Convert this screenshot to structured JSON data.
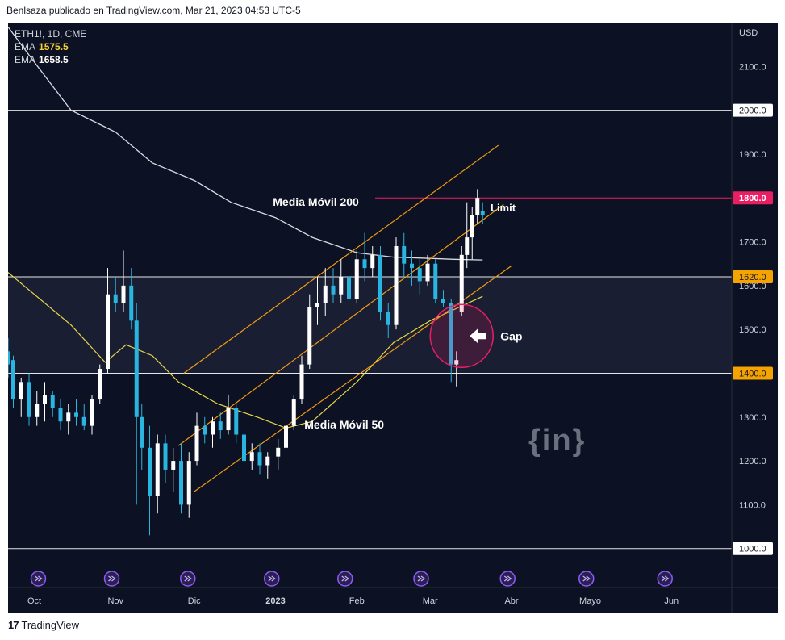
{
  "header": {
    "publisher_text": "Benlsaza publicado en TradingView.com, Mar 21, 2023 04:53 UTC-5"
  },
  "footer": {
    "brand": "TradingView"
  },
  "legend": {
    "symbol": "ETH1!, 1D, CME",
    "ema1_label": "EMA",
    "ema1_value": "1575.5",
    "ema2_label": "EMA",
    "ema2_value": "1658.5"
  },
  "watermark": {
    "text": "{in}"
  },
  "colors": {
    "background": "#0c1123",
    "up": "#ffffff",
    "down": "#2ab4e0",
    "ema50": "#e8d84a",
    "ema200": "#d9dbe0",
    "channel": "#f39c12",
    "limit": "#e91e63",
    "accent_badge": "#f5a300"
  },
  "chart_data": {
    "type": "candlestick",
    "title": "",
    "ylabel": "USD",
    "ylim": [
      970,
      2200
    ],
    "yticks": [
      "1000.0",
      "1100.0",
      "1200.0",
      "1300.0",
      "1400.0",
      "1500.0",
      "1600.0",
      "1700.0",
      "1800.0",
      "1900.0",
      "2000.0",
      "2100.0"
    ],
    "xticks": [
      {
        "date": "2022-10-01",
        "label": "Oct"
      },
      {
        "date": "2022-11-01",
        "label": "Nov"
      },
      {
        "date": "2022-12-01",
        "label": "Dic"
      },
      {
        "date": "2023-01-01",
        "label": "2023"
      },
      {
        "date": "2023-02-01",
        "label": "Feb"
      },
      {
        "date": "2023-03-01",
        "label": "Mar"
      },
      {
        "date": "2023-04-01",
        "label": "Abr"
      },
      {
        "date": "2023-05-01",
        "label": "Mayo"
      },
      {
        "date": "2023-06-01",
        "label": "Jun"
      }
    ],
    "xlim": [
      "2022-09-21",
      "2023-06-24"
    ],
    "horizontal_lines": [
      {
        "value": 2000,
        "label": "2000.0",
        "style": "white"
      },
      {
        "value": 1620,
        "label": "1620.0",
        "style": "yellow"
      },
      {
        "value": 1400,
        "label": "1400.0",
        "style": "yellow"
      },
      {
        "value": 1000,
        "label": "1000.0",
        "style": "white"
      }
    ],
    "limit_line": {
      "value": 1800,
      "label": "1800.0",
      "start": "2023-02-08",
      "end": "2023-06-24",
      "text": "Limit"
    },
    "annotations": {
      "ema200": "Media Móvil 200",
      "ema50": "Media Móvil 50",
      "gap": "Gap"
    },
    "channel_lines": [
      {
        "x1": "2022-11-27",
        "y1": 1400,
        "x2": "2023-03-27",
        "y2": 1920
      },
      {
        "x1": "2022-11-25",
        "y1": 1235,
        "x2": "2023-03-29",
        "y2": 1785
      },
      {
        "x1": "2022-12-01",
        "y1": 1130,
        "x2": "2023-04-01",
        "y2": 1645
      }
    ],
    "gap_circle": {
      "x": "2023-03-13",
      "y": 1485
    },
    "ema200": [
      {
        "d": "2022-09-21",
        "v": 2190
      },
      {
        "d": "2022-10-01",
        "v": 2110
      },
      {
        "d": "2022-10-15",
        "v": 2000
      },
      {
        "d": "2022-11-01",
        "v": 1950
      },
      {
        "d": "2022-11-15",
        "v": 1880
      },
      {
        "d": "2022-12-01",
        "v": 1840
      },
      {
        "d": "2022-12-15",
        "v": 1790
      },
      {
        "d": "2023-01-01",
        "v": 1755
      },
      {
        "d": "2023-01-15",
        "v": 1710
      },
      {
        "d": "2023-02-01",
        "v": 1675
      },
      {
        "d": "2023-02-15",
        "v": 1665
      },
      {
        "d": "2023-03-01",
        "v": 1662
      },
      {
        "d": "2023-03-10",
        "v": 1660
      },
      {
        "d": "2023-03-21",
        "v": 1658.5
      }
    ],
    "ema50": [
      {
        "d": "2022-09-21",
        "v": 1630
      },
      {
        "d": "2022-10-01",
        "v": 1580
      },
      {
        "d": "2022-10-15",
        "v": 1510
      },
      {
        "d": "2022-10-28",
        "v": 1425
      },
      {
        "d": "2022-11-05",
        "v": 1465
      },
      {
        "d": "2022-11-15",
        "v": 1440
      },
      {
        "d": "2022-11-25",
        "v": 1380
      },
      {
        "d": "2022-12-10",
        "v": 1330
      },
      {
        "d": "2022-12-25",
        "v": 1300
      },
      {
        "d": "2023-01-05",
        "v": 1275
      },
      {
        "d": "2023-01-15",
        "v": 1290
      },
      {
        "d": "2023-02-01",
        "v": 1380
      },
      {
        "d": "2023-02-15",
        "v": 1470
      },
      {
        "d": "2023-03-01",
        "v": 1520
      },
      {
        "d": "2023-03-10",
        "v": 1545
      },
      {
        "d": "2023-03-21",
        "v": 1575.5
      }
    ],
    "candles": [
      {
        "d": "2022-09-21",
        "o": 1450,
        "h": 1480,
        "l": 1390,
        "c": 1420
      },
      {
        "d": "2022-09-23",
        "o": 1430,
        "h": 1440,
        "l": 1320,
        "c": 1340
      },
      {
        "d": "2022-09-26",
        "o": 1340,
        "h": 1390,
        "l": 1300,
        "c": 1380
      },
      {
        "d": "2022-09-29",
        "o": 1380,
        "h": 1400,
        "l": 1280,
        "c": 1300
      },
      {
        "d": "2022-10-02",
        "o": 1300,
        "h": 1360,
        "l": 1280,
        "c": 1330
      },
      {
        "d": "2022-10-05",
        "o": 1330,
        "h": 1380,
        "l": 1290,
        "c": 1350
      },
      {
        "d": "2022-10-08",
        "o": 1350,
        "h": 1360,
        "l": 1300,
        "c": 1320
      },
      {
        "d": "2022-10-11",
        "o": 1320,
        "h": 1340,
        "l": 1270,
        "c": 1290
      },
      {
        "d": "2022-10-14",
        "o": 1290,
        "h": 1330,
        "l": 1260,
        "c": 1310
      },
      {
        "d": "2022-10-17",
        "o": 1310,
        "h": 1340,
        "l": 1280,
        "c": 1300
      },
      {
        "d": "2022-10-20",
        "o": 1300,
        "h": 1330,
        "l": 1270,
        "c": 1280
      },
      {
        "d": "2022-10-23",
        "o": 1280,
        "h": 1350,
        "l": 1260,
        "c": 1340
      },
      {
        "d": "2022-10-26",
        "o": 1340,
        "h": 1420,
        "l": 1330,
        "c": 1410
      },
      {
        "d": "2022-10-29",
        "o": 1410,
        "h": 1640,
        "l": 1400,
        "c": 1580
      },
      {
        "d": "2022-11-01",
        "o": 1580,
        "h": 1620,
        "l": 1540,
        "c": 1560
      },
      {
        "d": "2022-11-04",
        "o": 1560,
        "h": 1680,
        "l": 1540,
        "c": 1600
      },
      {
        "d": "2022-11-07",
        "o": 1600,
        "h": 1640,
        "l": 1500,
        "c": 1520
      },
      {
        "d": "2022-11-09",
        "o": 1520,
        "h": 1560,
        "l": 1100,
        "c": 1300
      },
      {
        "d": "2022-11-11",
        "o": 1300,
        "h": 1330,
        "l": 1180,
        "c": 1230
      },
      {
        "d": "2022-11-14",
        "o": 1230,
        "h": 1280,
        "l": 1030,
        "c": 1120
      },
      {
        "d": "2022-11-17",
        "o": 1120,
        "h": 1260,
        "l": 1080,
        "c": 1240
      },
      {
        "d": "2022-11-20",
        "o": 1240,
        "h": 1260,
        "l": 1150,
        "c": 1180
      },
      {
        "d": "2022-11-23",
        "o": 1180,
        "h": 1230,
        "l": 1130,
        "c": 1200
      },
      {
        "d": "2022-11-26",
        "o": 1200,
        "h": 1240,
        "l": 1080,
        "c": 1100
      },
      {
        "d": "2022-11-29",
        "o": 1100,
        "h": 1220,
        "l": 1070,
        "c": 1200
      },
      {
        "d": "2022-12-02",
        "o": 1200,
        "h": 1310,
        "l": 1190,
        "c": 1280
      },
      {
        "d": "2022-12-05",
        "o": 1280,
        "h": 1300,
        "l": 1240,
        "c": 1260
      },
      {
        "d": "2022-12-08",
        "o": 1260,
        "h": 1300,
        "l": 1230,
        "c": 1290
      },
      {
        "d": "2022-12-11",
        "o": 1290,
        "h": 1310,
        "l": 1250,
        "c": 1270
      },
      {
        "d": "2022-12-14",
        "o": 1270,
        "h": 1350,
        "l": 1260,
        "c": 1320
      },
      {
        "d": "2022-12-17",
        "o": 1320,
        "h": 1330,
        "l": 1240,
        "c": 1260
      },
      {
        "d": "2022-12-20",
        "o": 1260,
        "h": 1280,
        "l": 1150,
        "c": 1200
      },
      {
        "d": "2022-12-23",
        "o": 1200,
        "h": 1240,
        "l": 1180,
        "c": 1220
      },
      {
        "d": "2022-12-26",
        "o": 1220,
        "h": 1240,
        "l": 1170,
        "c": 1190
      },
      {
        "d": "2022-12-29",
        "o": 1190,
        "h": 1220,
        "l": 1160,
        "c": 1210
      },
      {
        "d": "2023-01-02",
        "o": 1210,
        "h": 1250,
        "l": 1180,
        "c": 1230
      },
      {
        "d": "2023-01-05",
        "o": 1230,
        "h": 1300,
        "l": 1220,
        "c": 1280
      },
      {
        "d": "2023-01-08",
        "o": 1280,
        "h": 1350,
        "l": 1270,
        "c": 1340
      },
      {
        "d": "2023-01-11",
        "o": 1340,
        "h": 1440,
        "l": 1330,
        "c": 1420
      },
      {
        "d": "2023-01-14",
        "o": 1420,
        "h": 1580,
        "l": 1410,
        "c": 1550
      },
      {
        "d": "2023-01-17",
        "o": 1550,
        "h": 1620,
        "l": 1510,
        "c": 1560
      },
      {
        "d": "2023-01-20",
        "o": 1560,
        "h": 1640,
        "l": 1530,
        "c": 1600
      },
      {
        "d": "2023-01-23",
        "o": 1600,
        "h": 1640,
        "l": 1560,
        "c": 1580
      },
      {
        "d": "2023-01-26",
        "o": 1580,
        "h": 1660,
        "l": 1560,
        "c": 1620
      },
      {
        "d": "2023-01-29",
        "o": 1620,
        "h": 1660,
        "l": 1550,
        "c": 1570
      },
      {
        "d": "2023-02-01",
        "o": 1570,
        "h": 1680,
        "l": 1560,
        "c": 1660
      },
      {
        "d": "2023-02-04",
        "o": 1660,
        "h": 1720,
        "l": 1610,
        "c": 1640
      },
      {
        "d": "2023-02-07",
        "o": 1640,
        "h": 1690,
        "l": 1620,
        "c": 1670
      },
      {
        "d": "2023-02-10",
        "o": 1670,
        "h": 1690,
        "l": 1520,
        "c": 1540
      },
      {
        "d": "2023-02-13",
        "o": 1540,
        "h": 1560,
        "l": 1480,
        "c": 1510
      },
      {
        "d": "2023-02-16",
        "o": 1510,
        "h": 1710,
        "l": 1500,
        "c": 1690
      },
      {
        "d": "2023-02-19",
        "o": 1690,
        "h": 1720,
        "l": 1620,
        "c": 1650
      },
      {
        "d": "2023-02-22",
        "o": 1650,
        "h": 1680,
        "l": 1600,
        "c": 1640
      },
      {
        "d": "2023-02-25",
        "o": 1640,
        "h": 1660,
        "l": 1580,
        "c": 1610
      },
      {
        "d": "2023-02-28",
        "o": 1610,
        "h": 1670,
        "l": 1600,
        "c": 1650
      },
      {
        "d": "2023-03-03",
        "o": 1650,
        "h": 1660,
        "l": 1560,
        "c": 1570
      },
      {
        "d": "2023-03-06",
        "o": 1570,
        "h": 1590,
        "l": 1550,
        "c": 1560
      },
      {
        "d": "2023-03-09",
        "o": 1560,
        "h": 1570,
        "l": 1380,
        "c": 1420
      },
      {
        "d": "2023-03-11",
        "o": 1420,
        "h": 1450,
        "l": 1370,
        "c": 1430
      },
      {
        "d": "2023-03-13",
        "o": 1540,
        "h": 1690,
        "l": 1530,
        "c": 1670
      },
      {
        "d": "2023-03-15",
        "o": 1670,
        "h": 1790,
        "l": 1640,
        "c": 1710
      },
      {
        "d": "2023-03-17",
        "o": 1710,
        "h": 1780,
        "l": 1660,
        "c": 1760
      },
      {
        "d": "2023-03-19",
        "o": 1760,
        "h": 1820,
        "l": 1740,
        "c": 1800
      },
      {
        "d": "2023-03-21",
        "o": 1770,
        "h": 1790,
        "l": 1740,
        "c": 1760
      }
    ]
  }
}
